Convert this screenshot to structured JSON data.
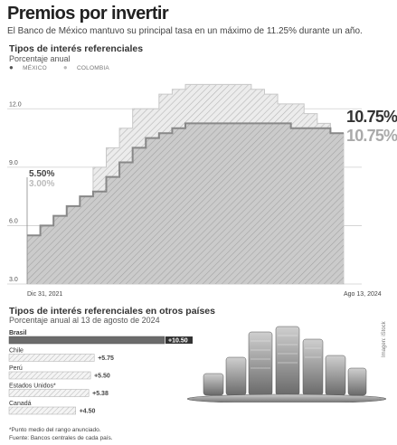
{
  "header": {
    "title": "Premios por invertir",
    "subtitle": "El Banco de México mantuvo su principal tasa en un máximo de 11.25% durante un año."
  },
  "chart1": {
    "title": "Tipos de interés referenciales",
    "subtitle": "Porcentaje anual",
    "legend": [
      "MÉXICO",
      "COLOMBIA"
    ],
    "start_label_mx": "5.50%",
    "start_label_co": "3.00%",
    "end_label_mx": "10.75%",
    "end_label_co": "10.75%",
    "x_start_label": "Dic 31, 2021",
    "x_end_label": "Ago 13, 2024"
  },
  "chart2": {
    "title": "Tipos de interés referenciales en otros países",
    "subtitle": "Porcentaje anual al 13 de agosto de 2024"
  },
  "footnotes": [
    "*Punto medio del rango anunciado.",
    "Fuente: Bancos centrales de cada país."
  ],
  "photo_credit": "Imagen: iStock",
  "colors": {
    "mexico": "#9a9a9a",
    "colombia": "#d2d2d2",
    "hatch": "#bbbbbb",
    "bar_brasil": "#6b6b6b"
  },
  "chart_data": [
    {
      "type": "area",
      "title": "Tipos de interés referenciales",
      "ylabel": "Porcentaje anual",
      "ylim": [
        3.0,
        13.5
      ],
      "yticks": [
        3.0,
        6.0,
        9.0,
        12.0
      ],
      "x_ticks": [
        "Dic 31, 2021",
        "Ago 13, 2024"
      ],
      "series": [
        {
          "name": "MÉXICO",
          "values": [
            5.5,
            6.0,
            6.5,
            7.0,
            7.5,
            7.75,
            8.5,
            9.25,
            10.0,
            10.5,
            10.75,
            11.0,
            11.25,
            11.25,
            11.25,
            11.25,
            11.25,
            11.25,
            11.25,
            11.25,
            11.0,
            11.0,
            11.0,
            10.75
          ]
        },
        {
          "name": "COLOMBIA",
          "values": [
            3.0,
            4.0,
            5.0,
            6.0,
            7.5,
            9.0,
            10.0,
            11.0,
            12.0,
            12.0,
            12.75,
            13.0,
            13.25,
            13.25,
            13.25,
            13.25,
            13.25,
            13.0,
            12.75,
            12.25,
            12.25,
            11.75,
            11.25,
            10.75
          ]
        }
      ]
    },
    {
      "type": "bar",
      "title": "Tipos de interés referenciales en otros países",
      "subtitle": "Porcentaje anual al 13 de agosto de 2024",
      "categories": [
        "Brasil",
        "Chile",
        "Perú",
        "Estados Unidos*",
        "Canadá"
      ],
      "values": [
        10.5,
        5.75,
        5.5,
        5.38,
        4.5
      ],
      "value_labels": [
        "+10.50",
        "+5.75",
        "+5.50",
        "+5.38",
        "+4.50"
      ]
    }
  ]
}
